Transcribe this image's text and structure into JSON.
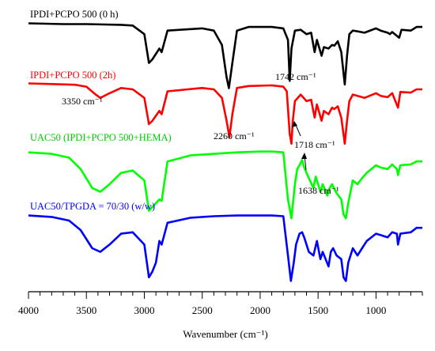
{
  "chart_data": {
    "type": "line",
    "xlabel": "Wavenumber (cm⁻¹)",
    "ylabel": "",
    "xlim": [
      4000,
      600
    ],
    "x_reversed": true,
    "grid": false,
    "x_ticks": [
      4000,
      3500,
      3000,
      2500,
      2000,
      1500,
      1000
    ],
    "series": [
      {
        "name": "IPDI+PCPO 500 (0 h)",
        "color": "#000000",
        "points": [
          [
            4000,
            95
          ],
          [
            3700,
            94
          ],
          [
            3500,
            94
          ],
          [
            3200,
            93
          ],
          [
            3100,
            92
          ],
          [
            3000,
            80
          ],
          [
            2960,
            40
          ],
          [
            2930,
            45
          ],
          [
            2870,
            60
          ],
          [
            2850,
            55
          ],
          [
            2800,
            85
          ],
          [
            2500,
            88
          ],
          [
            2400,
            85
          ],
          [
            2330,
            65
          ],
          [
            2290,
            20
          ],
          [
            2270,
            5
          ],
          [
            2240,
            40
          ],
          [
            2200,
            85
          ],
          [
            2100,
            90
          ],
          [
            1900,
            90
          ],
          [
            1800,
            88
          ],
          [
            1760,
            72
          ],
          [
            1745,
            15
          ],
          [
            1730,
            60
          ],
          [
            1700,
            85
          ],
          [
            1650,
            86
          ],
          [
            1600,
            80
          ],
          [
            1560,
            82
          ],
          [
            1530,
            55
          ],
          [
            1510,
            72
          ],
          [
            1470,
            50
          ],
          [
            1450,
            62
          ],
          [
            1410,
            60
          ],
          [
            1380,
            65
          ],
          [
            1360,
            64
          ],
          [
            1330,
            70
          ],
          [
            1300,
            55
          ],
          [
            1270,
            10
          ],
          [
            1250,
            50
          ],
          [
            1230,
            80
          ],
          [
            1200,
            85
          ],
          [
            1160,
            84
          ],
          [
            1100,
            82
          ],
          [
            1000,
            88
          ],
          [
            960,
            85
          ],
          [
            900,
            82
          ],
          [
            880,
            80
          ],
          [
            860,
            83
          ],
          [
            800,
            75
          ],
          [
            780,
            86
          ],
          [
            700,
            85
          ],
          [
            650,
            90
          ],
          [
            600,
            90
          ]
        ],
        "label": {
          "text": "IPDI+PCPO 500 (0 h)",
          "x": 3950,
          "y": 130
        }
      },
      {
        "name": "IPDI+PCPO 500 (2h)",
        "color": "#ff0000",
        "points": [
          [
            4000,
            97
          ],
          [
            3800,
            96
          ],
          [
            3600,
            95
          ],
          [
            3500,
            92
          ],
          [
            3420,
            80
          ],
          [
            3380,
            75
          ],
          [
            3300,
            82
          ],
          [
            3200,
            90
          ],
          [
            3100,
            88
          ],
          [
            3000,
            75
          ],
          [
            2960,
            35
          ],
          [
            2930,
            40
          ],
          [
            2870,
            55
          ],
          [
            2850,
            50
          ],
          [
            2800,
            85
          ],
          [
            2500,
            90
          ],
          [
            2400,
            88
          ],
          [
            2330,
            75
          ],
          [
            2290,
            40
          ],
          [
            2265,
            15
          ],
          [
            2240,
            50
          ],
          [
            2200,
            90
          ],
          [
            2100,
            93
          ],
          [
            1900,
            94
          ],
          [
            1800,
            92
          ],
          [
            1770,
            85
          ],
          [
            1745,
            20
          ],
          [
            1730,
            5
          ],
          [
            1718,
            40
          ],
          [
            1700,
            70
          ],
          [
            1650,
            80
          ],
          [
            1600,
            70
          ],
          [
            1560,
            72
          ],
          [
            1530,
            45
          ],
          [
            1510,
            65
          ],
          [
            1470,
            40
          ],
          [
            1450,
            55
          ],
          [
            1410,
            50
          ],
          [
            1380,
            60
          ],
          [
            1360,
            58
          ],
          [
            1330,
            62
          ],
          [
            1300,
            45
          ],
          [
            1270,
            5
          ],
          [
            1250,
            40
          ],
          [
            1230,
            70
          ],
          [
            1200,
            80
          ],
          [
            1160,
            78
          ],
          [
            1100,
            75
          ],
          [
            1000,
            82
          ],
          [
            960,
            78
          ],
          [
            900,
            76
          ],
          [
            860,
            82
          ],
          [
            810,
            60
          ],
          [
            790,
            84
          ],
          [
            700,
            83
          ],
          [
            650,
            88
          ],
          [
            600,
            88
          ]
        ],
        "label": {
          "text": "IPDI+PCPO 500 (2h)",
          "x": 3950,
          "y": 130
        }
      },
      {
        "name": "UAC50 (IPDI+PCPO 500+HEMA)",
        "color": "#00ff00",
        "points": [
          [
            4000,
            92
          ],
          [
            3800,
            90
          ],
          [
            3650,
            85
          ],
          [
            3550,
            70
          ],
          [
            3450,
            45
          ],
          [
            3380,
            40
          ],
          [
            3300,
            50
          ],
          [
            3200,
            65
          ],
          [
            3100,
            68
          ],
          [
            3000,
            55
          ],
          [
            2960,
            15
          ],
          [
            2930,
            20
          ],
          [
            2900,
            25
          ],
          [
            2870,
            30
          ],
          [
            2850,
            28
          ],
          [
            2800,
            80
          ],
          [
            2600,
            88
          ],
          [
            2400,
            90
          ],
          [
            2200,
            92
          ],
          [
            2000,
            93
          ],
          [
            1900,
            93
          ],
          [
            1800,
            92
          ],
          [
            1760,
            30
          ],
          [
            1730,
            5
          ],
          [
            1700,
            50
          ],
          [
            1680,
            70
          ],
          [
            1660,
            75
          ],
          [
            1638,
            82
          ],
          [
            1620,
            72
          ],
          [
            1580,
            58
          ],
          [
            1540,
            45
          ],
          [
            1520,
            60
          ],
          [
            1480,
            40
          ],
          [
            1460,
            50
          ],
          [
            1420,
            35
          ],
          [
            1400,
            45
          ],
          [
            1380,
            50
          ],
          [
            1340,
            38
          ],
          [
            1300,
            30
          ],
          [
            1280,
            10
          ],
          [
            1260,
            5
          ],
          [
            1240,
            25
          ],
          [
            1200,
            55
          ],
          [
            1160,
            50
          ],
          [
            1120,
            58
          ],
          [
            1080,
            65
          ],
          [
            1000,
            75
          ],
          [
            960,
            72
          ],
          [
            900,
            70
          ],
          [
            860,
            76
          ],
          [
            820,
            70
          ],
          [
            810,
            62
          ],
          [
            790,
            75
          ],
          [
            700,
            76
          ],
          [
            650,
            80
          ],
          [
            600,
            80
          ]
        ],
        "label": {
          "text": "UAC50 (IPDI+PCPO 500+HEMA)",
          "x": 3950,
          "y": 130
        }
      },
      {
        "name": "UAC50/TPGDA = 70/30 (w/w)",
        "color": "#0000ff",
        "points": [
          [
            4000,
            95
          ],
          [
            3800,
            93
          ],
          [
            3650,
            88
          ],
          [
            3550,
            75
          ],
          [
            3450,
            50
          ],
          [
            3380,
            45
          ],
          [
            3300,
            55
          ],
          [
            3200,
            70
          ],
          [
            3100,
            72
          ],
          [
            3000,
            55
          ],
          [
            2960,
            10
          ],
          [
            2930,
            18
          ],
          [
            2900,
            30
          ],
          [
            2870,
            60
          ],
          [
            2850,
            55
          ],
          [
            2800,
            85
          ],
          [
            2600,
            92
          ],
          [
            2400,
            94
          ],
          [
            2200,
            95
          ],
          [
            2000,
            95
          ],
          [
            1900,
            95
          ],
          [
            1800,
            94
          ],
          [
            1760,
            40
          ],
          [
            1735,
            5
          ],
          [
            1710,
            30
          ],
          [
            1690,
            55
          ],
          [
            1660,
            70
          ],
          [
            1638,
            72
          ],
          [
            1620,
            65
          ],
          [
            1580,
            45
          ],
          [
            1540,
            40
          ],
          [
            1510,
            60
          ],
          [
            1480,
            35
          ],
          [
            1460,
            45
          ],
          [
            1410,
            25
          ],
          [
            1390,
            45
          ],
          [
            1370,
            50
          ],
          [
            1340,
            40
          ],
          [
            1300,
            35
          ],
          [
            1280,
            10
          ],
          [
            1260,
            5
          ],
          [
            1240,
            30
          ],
          [
            1200,
            50
          ],
          [
            1160,
            40
          ],
          [
            1120,
            50
          ],
          [
            1080,
            60
          ],
          [
            1000,
            70
          ],
          [
            960,
            68
          ],
          [
            900,
            65
          ],
          [
            860,
            72
          ],
          [
            820,
            70
          ],
          [
            810,
            55
          ],
          [
            790,
            70
          ],
          [
            700,
            72
          ],
          [
            650,
            78
          ],
          [
            600,
            78
          ]
        ],
        "label": {
          "text": "UAC50/TPGDA = 70/30 (w/w)",
          "x": 3950,
          "y": 130
        }
      }
    ],
    "annotations": [
      {
        "text": "1742 cm⁻¹"
      },
      {
        "text": "3350 cm⁻¹"
      },
      {
        "text": "2260 cm⁻¹"
      },
      {
        "text": "1718 cm⁻¹"
      },
      {
        "text": "1638 cm⁻¹"
      }
    ]
  }
}
